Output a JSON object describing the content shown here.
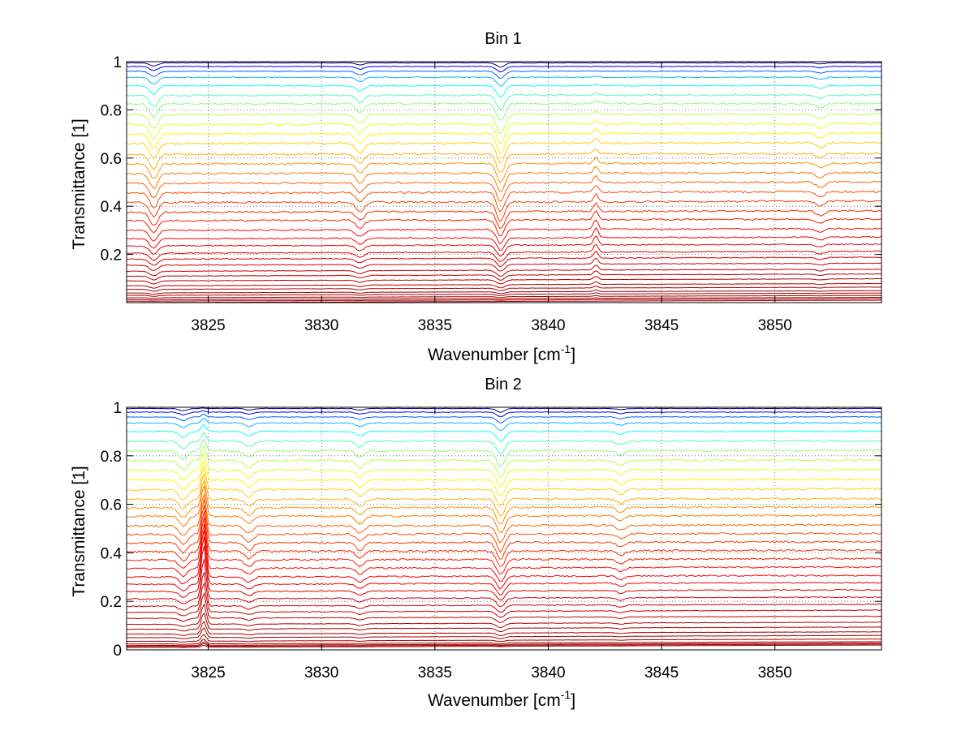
{
  "chart_data": [
    {
      "type": "line",
      "title": "Bin 1",
      "xlabel_main": "Wavenumber [cm",
      "xlabel_sup": "-1",
      "xlabel_end": "]",
      "ylabel": "Transmittance [1]",
      "xlim": [
        3821.4,
        3854.7
      ],
      "ylim": [
        0.0,
        1.0
      ],
      "xticks": [
        3825,
        3830,
        3835,
        3840,
        3845,
        3850
      ],
      "yticks": [
        0.2,
        0.4,
        0.6,
        0.8,
        1.0
      ],
      "ytick_labels": [
        "0.2",
        "0.4",
        "0.6",
        "0.8",
        "1"
      ],
      "xtick_labels": [
        "3825",
        "3830",
        "3835",
        "3840",
        "3845",
        "3850"
      ],
      "grid": true,
      "legend": "none",
      "colormap": "jet",
      "series_count": 36,
      "baseline_levels": [
        0.0,
        0.006,
        0.012,
        0.02,
        0.03,
        0.04,
        0.055,
        0.07,
        0.09,
        0.11,
        0.13,
        0.155,
        0.18,
        0.205,
        0.235,
        0.265,
        0.3,
        0.34,
        0.375,
        0.415,
        0.455,
        0.495,
        0.535,
        0.575,
        0.615,
        0.66,
        0.7,
        0.74,
        0.78,
        0.825,
        0.86,
        0.9,
        0.935,
        0.96,
        0.98,
        0.995
      ],
      "absorption_lines": [
        {
          "x": 3822.6,
          "depth": 0.06
        },
        {
          "x": 3831.7,
          "depth": 0.04
        },
        {
          "x": 3837.9,
          "depth": 0.08
        },
        {
          "x": 3852.0,
          "depth": 0.02
        }
      ],
      "emission_lines": [
        {
          "x": 3842.1,
          "height": 0.04
        }
      ]
    },
    {
      "type": "line",
      "title": "Bin 2",
      "xlabel_main": "Wavenumber [cm",
      "xlabel_sup": "-1",
      "xlabel_end": "]",
      "ylabel": "Transmittance [1]",
      "xlim": [
        3821.4,
        3854.7
      ],
      "ylim": [
        0.0,
        1.0
      ],
      "xticks": [
        3825,
        3830,
        3835,
        3840,
        3845,
        3850
      ],
      "yticks": [
        0.0,
        0.2,
        0.4,
        0.6,
        0.8,
        1.0
      ],
      "ytick_labels": [
        "0",
        "0.2",
        "0.4",
        "0.6",
        "0.8",
        "1"
      ],
      "xtick_labels": [
        "3825",
        "3830",
        "3835",
        "3840",
        "3845",
        "3850"
      ],
      "grid": true,
      "legend": "none",
      "colormap": "jet",
      "series_count": 36,
      "baseline_levels": [
        0.01,
        0.014,
        0.018,
        0.024,
        0.035,
        0.05,
        0.065,
        0.085,
        0.105,
        0.13,
        0.155,
        0.18,
        0.21,
        0.24,
        0.27,
        0.3,
        0.335,
        0.37,
        0.405,
        0.44,
        0.475,
        0.51,
        0.55,
        0.585,
        0.62,
        0.66,
        0.7,
        0.74,
        0.78,
        0.82,
        0.86,
        0.9,
        0.935,
        0.96,
        0.98,
        0.995
      ],
      "absorption_lines": [
        {
          "x": 3823.9,
          "depth": 0.04
        },
        {
          "x": 3826.8,
          "depth": 0.03
        },
        {
          "x": 3831.7,
          "depth": 0.03
        },
        {
          "x": 3837.9,
          "depth": 0.07
        },
        {
          "x": 3843.2,
          "depth": 0.02
        }
      ],
      "emission_lines": [
        {
          "x": 3824.8,
          "height": 0.2
        }
      ]
    }
  ]
}
